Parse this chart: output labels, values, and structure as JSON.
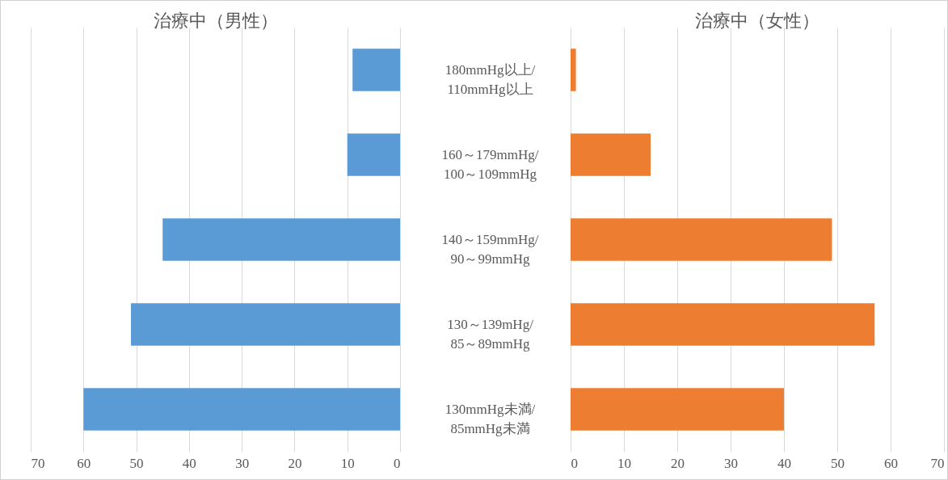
{
  "chart_data": [
    {
      "type": "bar",
      "orientation": "horizontal",
      "title": "治療中（男性）",
      "categories": [
        "180mmHg以上/110mmHg以上",
        "160～179mmHg/100～109mmHg",
        "140～159mmHg/90～99mmHg",
        "130～139mHg/85～89mmHg",
        "130mmHg未満/85mmHg未満"
      ],
      "values": [
        9,
        10,
        45,
        51,
        60
      ],
      "color": "#5b9bd5",
      "xlim": [
        70,
        0
      ],
      "xticks": [
        70,
        60,
        50,
        40,
        30,
        20,
        10,
        0
      ],
      "grid": "x"
    },
    {
      "type": "bar",
      "orientation": "horizontal",
      "title": "治療中（女性）",
      "categories": [
        "180mmHg以上/110mmHg以上",
        "160～179mmHg/100～109mmHg",
        "140～159mmHg/90～99mmHg",
        "130～139mHg/85～89mmHg",
        "130mmHg未満/85mmHg未満"
      ],
      "values": [
        1,
        15,
        49,
        57,
        40
      ],
      "color": "#ed7d31",
      "xlim": [
        0,
        70
      ],
      "xticks": [
        0,
        10,
        20,
        30,
        40,
        50,
        60,
        70
      ],
      "grid": "x",
      "tick_labels": "x"
    }
  ]
}
